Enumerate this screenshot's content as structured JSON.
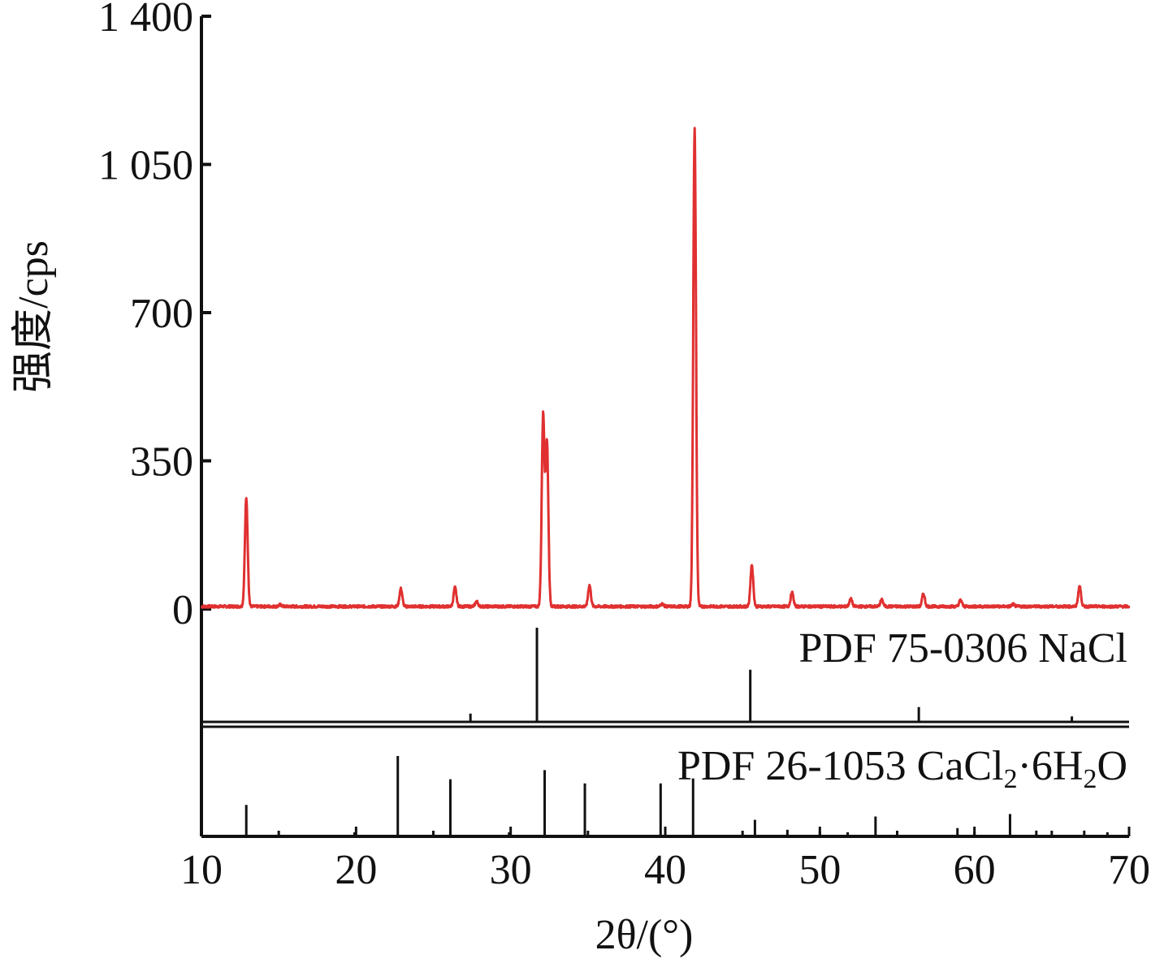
{
  "chart_data": {
    "type": "line",
    "xlabel": "2θ/(°)",
    "ylabel": "强度/cps",
    "xlim": [
      10,
      70
    ],
    "ylim": [
      0,
      1400
    ],
    "x_ticks": [
      10,
      20,
      30,
      40,
      50,
      60,
      70
    ],
    "x_tick_labels": [
      "10",
      "20",
      "30",
      "40",
      "50",
      "60",
      "70"
    ],
    "y_ticks": [
      0,
      350,
      700,
      1050,
      1400
    ],
    "y_tick_labels": [
      "0",
      "350",
      "700",
      "1 050",
      "1 400"
    ],
    "grid": false,
    "line_color": "#e03030",
    "peaks": [
      {
        "x": 12.9,
        "y": 255
      },
      {
        "x": 15.1,
        "y": 4
      },
      {
        "x": 22.9,
        "y": 42
      },
      {
        "x": 26.4,
        "y": 45
      },
      {
        "x": 27.8,
        "y": 12
      },
      {
        "x": 32.1,
        "y": 450
      },
      {
        "x": 32.35,
        "y": 385
      },
      {
        "x": 35.1,
        "y": 50
      },
      {
        "x": 39.8,
        "y": 6
      },
      {
        "x": 41.9,
        "y": 1130
      },
      {
        "x": 45.6,
        "y": 98
      },
      {
        "x": 48.2,
        "y": 33
      },
      {
        "x": 52.0,
        "y": 18
      },
      {
        "x": 54.0,
        "y": 16
      },
      {
        "x": 56.7,
        "y": 30
      },
      {
        "x": 59.1,
        "y": 15
      },
      {
        "x": 62.5,
        "y": 5
      },
      {
        "x": 66.8,
        "y": 48
      }
    ],
    "references": [
      {
        "name": "PDF 75-0306 NaCl",
        "label_main": "PDF 75-0306 NaCl",
        "color": "#111111",
        "sticks": [
          {
            "x": 27.4,
            "rel": 0.08
          },
          {
            "x": 31.7,
            "rel": 1.0
          },
          {
            "x": 45.5,
            "rel": 0.55
          },
          {
            "x": 56.4,
            "rel": 0.15
          },
          {
            "x": 66.3,
            "rel": 0.05
          }
        ]
      },
      {
        "name": "PDF 26-1053 CaCl2·6H2O",
        "label_parts": [
          "PDF 26-1053 CaCl",
          "2",
          "·6H",
          "2",
          "O"
        ],
        "color": "#111111",
        "sticks": [
          {
            "x": 12.9,
            "rel": 0.38
          },
          {
            "x": 19.9,
            "rel": 0.05
          },
          {
            "x": 22.7,
            "rel": 0.97
          },
          {
            "x": 26.1,
            "rel": 0.69
          },
          {
            "x": 29.9,
            "rel": 0.05
          },
          {
            "x": 32.2,
            "rel": 0.8
          },
          {
            "x": 34.8,
            "rel": 0.64
          },
          {
            "x": 39.7,
            "rel": 0.64
          },
          {
            "x": 41.8,
            "rel": 0.7
          },
          {
            "x": 45.8,
            "rel": 0.2
          },
          {
            "x": 47.9,
            "rel": 0.08
          },
          {
            "x": 50.0,
            "rel": 0.06
          },
          {
            "x": 51.8,
            "rel": 0.05
          },
          {
            "x": 53.6,
            "rel": 0.24
          },
          {
            "x": 58.9,
            "rel": 0.1
          },
          {
            "x": 60.0,
            "rel": 0.05
          },
          {
            "x": 62.3,
            "rel": 0.27
          },
          {
            "x": 64.0,
            "rel": 0.07
          },
          {
            "x": 67.1,
            "rel": 0.07
          },
          {
            "x": 68.6,
            "rel": 0.05
          }
        ]
      }
    ]
  }
}
